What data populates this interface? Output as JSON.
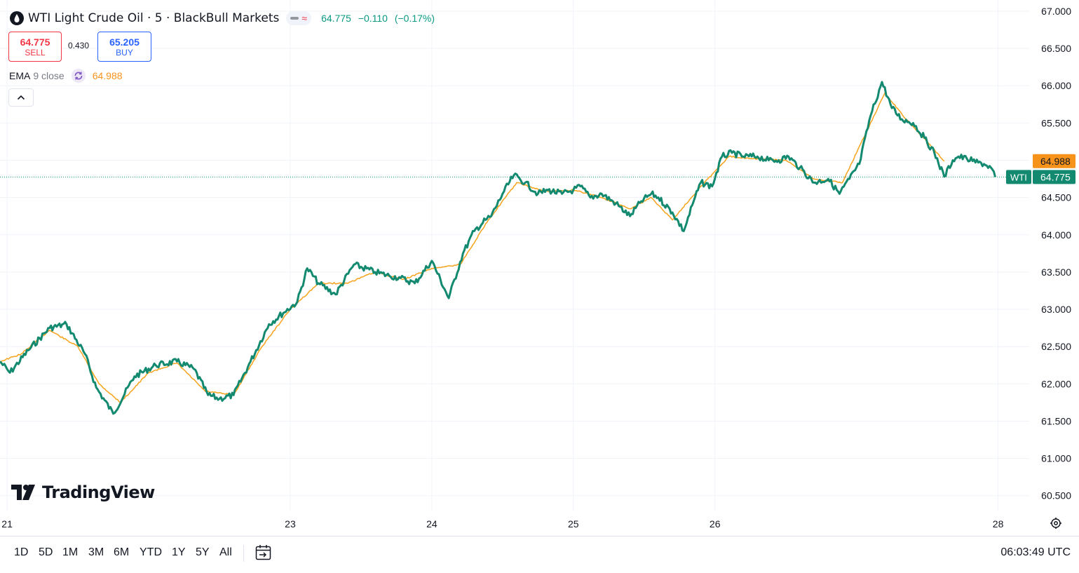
{
  "header": {
    "title": "WTI Light Crude Oil · 5 · BlackBull Markets",
    "wave_glyph": "≈",
    "last": "64.775",
    "change": "−0.110",
    "change_pct": "(−0.17%)"
  },
  "trade": {
    "sell_price": "64.775",
    "sell_label": "SELL",
    "spread": "0.430",
    "buy_price": "65.205",
    "buy_label": "BUY"
  },
  "indicator": {
    "name": "EMA",
    "params": "9 close",
    "value": "64.988"
  },
  "branding": {
    "logo_text": "TradingView"
  },
  "bottom": {
    "timeframes": [
      "1D",
      "5D",
      "1M",
      "3M",
      "6M",
      "YTD",
      "1Y",
      "5Y",
      "All"
    ],
    "clock": "06:03:49 UTC"
  },
  "colors": {
    "price_line": "#138a70",
    "ema_line": "#f7a21b",
    "price_label": "#138a70",
    "ema_label": "#f7931a",
    "sell": "#f23645",
    "buy": "#2962ff",
    "grid": "#f0f3fa"
  },
  "icons": [
    "oil-drop-icon",
    "dash-icon",
    "wave-icon",
    "ema-refresh-icon",
    "chevron-up-icon",
    "tradingview-logo-icon",
    "calendar-goto-icon",
    "settings-gear-icon"
  ],
  "chart_data": {
    "type": "line",
    "symbol_tag": "WTI",
    "ylim": [
      60.3,
      67.15
    ],
    "yticks": [
      60.5,
      61.0,
      61.5,
      62.0,
      62.5,
      63.0,
      63.5,
      64.0,
      64.5,
      65.0,
      65.5,
      66.0,
      66.5,
      67.0
    ],
    "ytick_labels": [
      "60.500",
      "61.000",
      "61.500",
      "62.000",
      "62.500",
      "63.000",
      "63.500",
      "64.000",
      "64.500",
      "65.000",
      "65.500",
      "66.000",
      "66.500",
      "67.000"
    ],
    "xlim": [
      20.95,
      28.22
    ],
    "xticks": [
      21,
      23,
      24,
      25,
      26,
      28
    ],
    "xtick_labels": [
      "21",
      "23",
      "24",
      "25",
      "26",
      "28"
    ],
    "grid": true,
    "current_price": 64.775,
    "current_price_label": "64.775",
    "ema_value": 64.988,
    "ema_value_label": "64.988",
    "series": [
      {
        "name": "WTI",
        "x": [
          20.95,
          21.02,
          21.15,
          21.3,
          21.42,
          21.55,
          21.63,
          21.75,
          21.9,
          22.05,
          22.2,
          22.32,
          22.42,
          22.5,
          22.6,
          22.72,
          22.85,
          22.95,
          23.05,
          23.12,
          23.2,
          23.32,
          23.45,
          23.6,
          23.7,
          23.78,
          23.88,
          24.0,
          24.12,
          24.22,
          24.3,
          24.38,
          24.42,
          24.5,
          24.58,
          24.66,
          24.75,
          24.82,
          24.92,
          25.0,
          25.05,
          25.12,
          25.2,
          25.3,
          25.4,
          25.48,
          25.55,
          25.6,
          25.7,
          25.78,
          25.85,
          25.9,
          25.98,
          26.05,
          26.12,
          26.2,
          26.3,
          26.38,
          26.45,
          26.52,
          26.6,
          26.7,
          26.8,
          26.88,
          26.95,
          27.02,
          27.1,
          27.18,
          27.25,
          27.32,
          27.4,
          27.48,
          27.55,
          27.62,
          27.68,
          27.72,
          27.78,
          27.82,
          27.86,
          27.9,
          27.95,
          27.98
        ],
        "y": [
          62.3,
          62.15,
          62.45,
          62.75,
          62.8,
          62.4,
          61.95,
          61.6,
          62.1,
          62.25,
          62.3,
          62.2,
          61.85,
          61.8,
          61.85,
          62.3,
          62.8,
          62.95,
          63.1,
          63.55,
          63.35,
          63.2,
          63.6,
          63.5,
          63.45,
          63.42,
          63.35,
          63.65,
          63.15,
          63.75,
          64.05,
          64.2,
          64.25,
          64.55,
          64.8,
          64.7,
          64.55,
          64.6,
          64.55,
          64.6,
          64.65,
          64.5,
          64.55,
          64.42,
          64.25,
          64.45,
          64.55,
          64.5,
          64.3,
          64.05,
          64.45,
          64.7,
          64.65,
          65.05,
          65.1,
          65.05,
          65.05,
          65.0,
          65.0,
          65.05,
          64.9,
          64.7,
          64.75,
          64.55,
          64.75,
          64.95,
          65.6,
          66.05,
          65.7,
          65.55,
          65.5,
          65.3,
          65.1,
          64.78,
          65.0,
          65.05,
          65.02,
          64.99,
          64.97,
          64.95,
          64.9,
          64.775
        ]
      },
      {
        "name": "EMA 9 close",
        "x": [
          20.95,
          21.1,
          21.3,
          21.5,
          21.65,
          21.8,
          22.0,
          22.2,
          22.4,
          22.6,
          22.8,
          23.0,
          23.2,
          23.4,
          23.6,
          23.8,
          24.0,
          24.2,
          24.4,
          24.6,
          24.8,
          25.0,
          25.2,
          25.4,
          25.55,
          25.7,
          25.9,
          26.1,
          26.3,
          26.5,
          26.7,
          26.9,
          27.05,
          27.2,
          27.35,
          27.5,
          27.62
        ],
        "y": [
          62.3,
          62.4,
          62.72,
          62.5,
          62.0,
          61.75,
          62.15,
          62.28,
          61.9,
          61.85,
          62.5,
          63.0,
          63.35,
          63.35,
          63.5,
          63.4,
          63.55,
          63.6,
          64.2,
          64.7,
          64.58,
          64.6,
          64.5,
          64.35,
          64.5,
          64.2,
          64.65,
          65.05,
          65.02,
          65.0,
          64.75,
          64.7,
          65.3,
          65.9,
          65.55,
          65.25,
          64.988
        ]
      }
    ]
  }
}
